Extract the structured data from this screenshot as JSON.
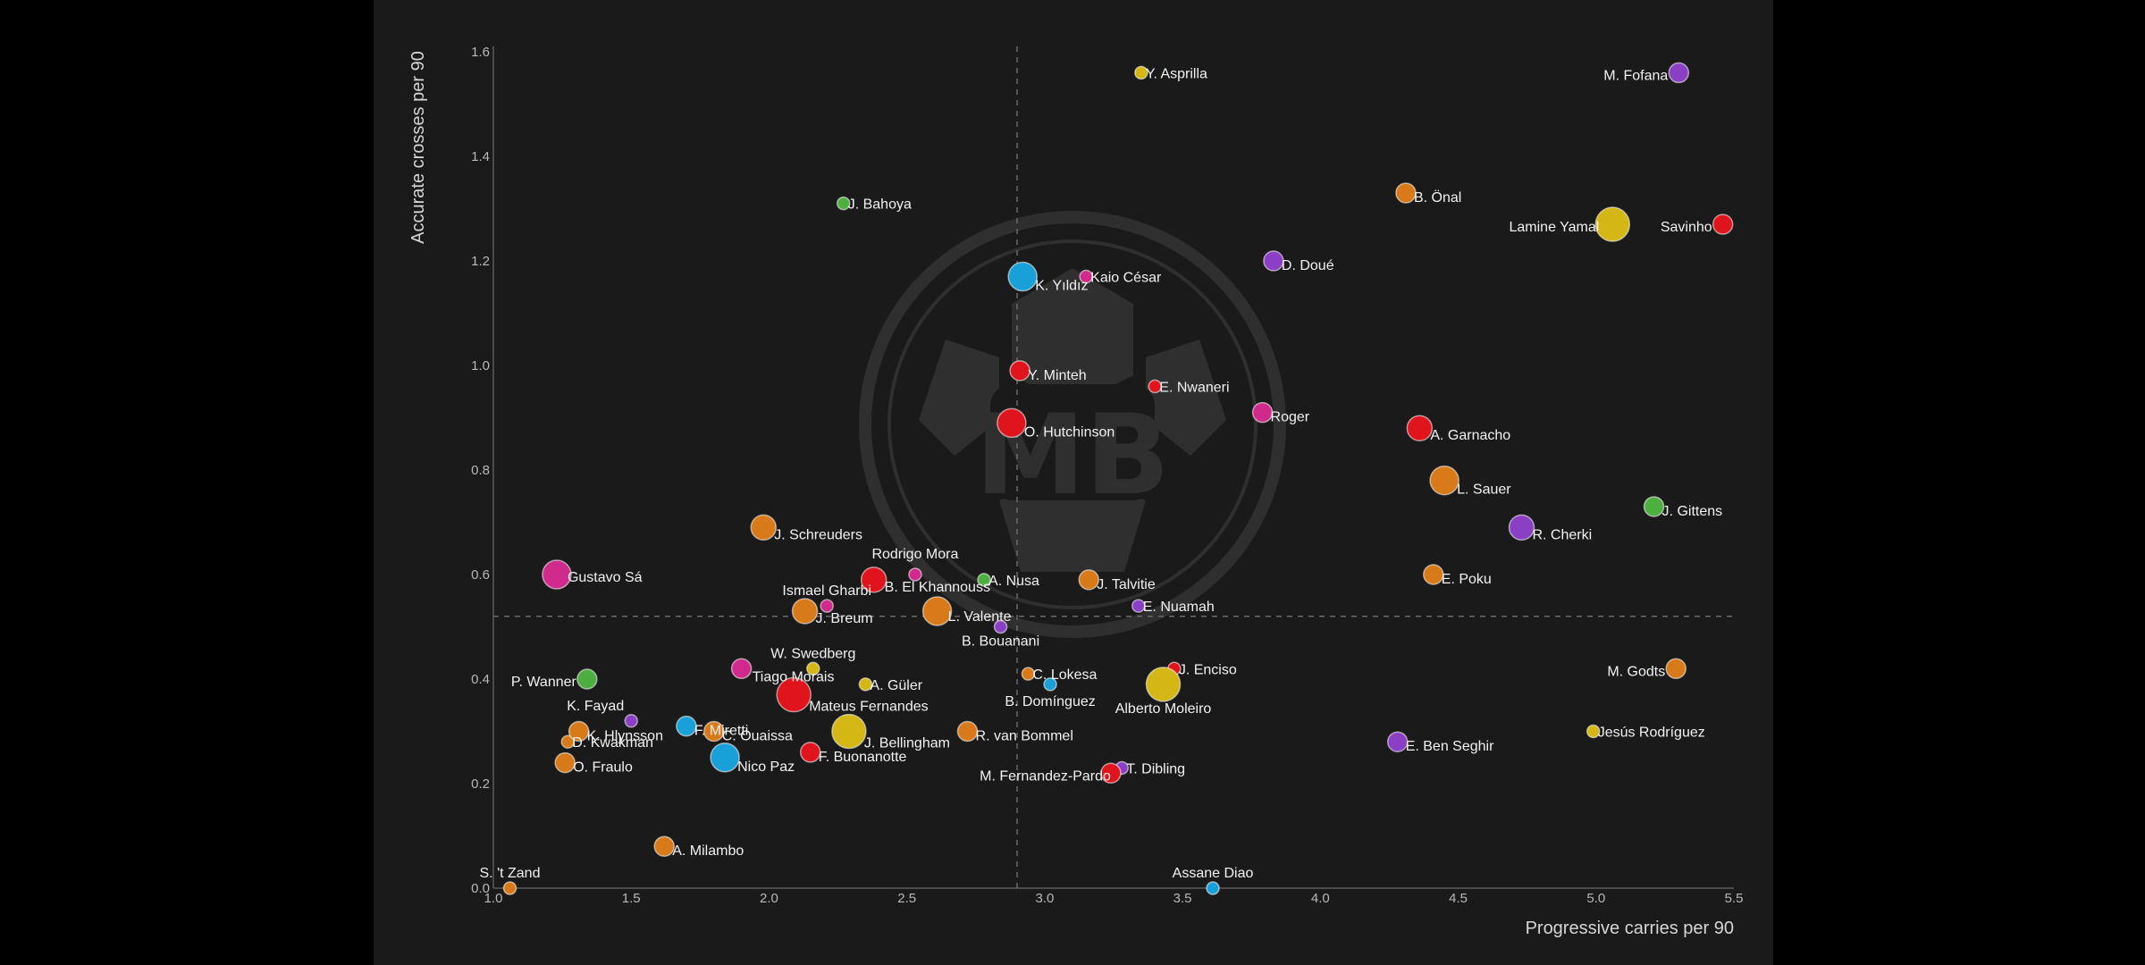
{
  "chart_data": {
    "type": "scatter",
    "title": "",
    "xlabel": "Progressive carries per 90",
    "ylabel": "Accurate crosses per 90",
    "xlim": [
      1.0,
      5.5
    ],
    "ylim": [
      0.0,
      1.6
    ],
    "xticks": [
      "1.0",
      "1.5",
      "2.0",
      "2.5",
      "3.0",
      "3.5",
      "4.0",
      "4.5",
      "5.0",
      "5.5"
    ],
    "yticks": [
      "0.0",
      "0.2",
      "0.4",
      "0.6",
      "0.8",
      "1.0",
      "1.2",
      "1.4",
      "1.6"
    ],
    "reference_lines": {
      "x": 2.9,
      "y": 0.52
    },
    "grid": false,
    "watermark": "MB",
    "colors": {
      "red": "#e0141c",
      "orange": "#d97a1a",
      "yellow": "#d4b614",
      "purple": "#8a3fc4",
      "green": "#4caf3f",
      "blue": "#1aa0d8",
      "pink": "#d02a8c"
    },
    "points": [
      {
        "name": "Y. Asprilla",
        "x": 3.35,
        "y": 1.56,
        "size": 1,
        "color": "yellow"
      },
      {
        "name": "M. Fofana",
        "x": 5.3,
        "y": 1.56,
        "size": 2,
        "color": "purple"
      },
      {
        "name": "J. Bahoya",
        "x": 2.27,
        "y": 1.31,
        "size": 1,
        "color": "green"
      },
      {
        "name": "B. Önal",
        "x": 4.31,
        "y": 1.33,
        "size": 2,
        "color": "orange"
      },
      {
        "name": "Lamine Yamal",
        "x": 5.06,
        "y": 1.27,
        "size": 5,
        "color": "yellow"
      },
      {
        "name": "Savinho",
        "x": 5.46,
        "y": 1.27,
        "size": 2,
        "color": "red"
      },
      {
        "name": "D. Doué",
        "x": 3.83,
        "y": 1.2,
        "size": 2,
        "color": "purple"
      },
      {
        "name": "K. Yıldız",
        "x": 2.92,
        "y": 1.17,
        "size": 4,
        "color": "blue"
      },
      {
        "name": "Kaio César",
        "x": 3.15,
        "y": 1.17,
        "size": 1,
        "color": "pink"
      },
      {
        "name": "Y. Minteh",
        "x": 2.91,
        "y": 0.99,
        "size": 2,
        "color": "red"
      },
      {
        "name": "E. Nwaneri",
        "x": 3.4,
        "y": 0.96,
        "size": 1,
        "color": "red"
      },
      {
        "name": "Roger",
        "x": 3.79,
        "y": 0.91,
        "size": 2,
        "color": "pink"
      },
      {
        "name": "O. Hutchinson",
        "x": 2.88,
        "y": 0.89,
        "size": 4,
        "color": "red"
      },
      {
        "name": "A. Garnacho",
        "x": 4.36,
        "y": 0.88,
        "size": 3,
        "color": "red"
      },
      {
        "name": "L. Sauer",
        "x": 4.45,
        "y": 0.78,
        "size": 4,
        "color": "orange"
      },
      {
        "name": "J. Gittens",
        "x": 5.21,
        "y": 0.73,
        "size": 2,
        "color": "green"
      },
      {
        "name": "R. Cherki",
        "x": 4.73,
        "y": 0.69,
        "size": 3,
        "color": "purple"
      },
      {
        "name": "J. Schreuders",
        "x": 1.98,
        "y": 0.69,
        "size": 3,
        "color": "orange"
      },
      {
        "name": "Gustavo Sá",
        "x": 1.23,
        "y": 0.6,
        "size": 4,
        "color": "pink"
      },
      {
        "name": "Rodrigo Mora",
        "x": 2.53,
        "y": 0.6,
        "size": 1,
        "color": "pink"
      },
      {
        "name": "B. El Khannouss",
        "x": 2.38,
        "y": 0.59,
        "size": 3,
        "color": "red"
      },
      {
        "name": "A. Nusa",
        "x": 2.78,
        "y": 0.59,
        "size": 1,
        "color": "green"
      },
      {
        "name": "J. Talvitie",
        "x": 3.16,
        "y": 0.59,
        "size": 2,
        "color": "orange"
      },
      {
        "name": "E. Poku",
        "x": 4.41,
        "y": 0.6,
        "size": 2,
        "color": "orange"
      },
      {
        "name": "Ismael Gharbi",
        "x": 2.21,
        "y": 0.54,
        "size": 1,
        "color": "pink"
      },
      {
        "name": "J. Breum",
        "x": 2.13,
        "y": 0.53,
        "size": 3,
        "color": "orange"
      },
      {
        "name": "L. Valente",
        "x": 2.61,
        "y": 0.53,
        "size": 4,
        "color": "orange"
      },
      {
        "name": "E. Nuamah",
        "x": 3.34,
        "y": 0.54,
        "size": 1,
        "color": "purple"
      },
      {
        "name": "B. Bouanani",
        "x": 2.84,
        "y": 0.5,
        "size": 1,
        "color": "purple"
      },
      {
        "name": "W. Swedberg",
        "x": 2.16,
        "y": 0.42,
        "size": 1,
        "color": "yellow"
      },
      {
        "name": "Tiago Morais",
        "x": 1.9,
        "y": 0.42,
        "size": 2,
        "color": "pink"
      },
      {
        "name": "P. Wanner",
        "x": 1.34,
        "y": 0.4,
        "size": 2,
        "color": "green"
      },
      {
        "name": "A. Güler",
        "x": 2.35,
        "y": 0.39,
        "size": 1,
        "color": "yellow"
      },
      {
        "name": "C. Lokesa",
        "x": 2.94,
        "y": 0.41,
        "size": 1,
        "color": "orange"
      },
      {
        "name": "J. Enciso",
        "x": 3.47,
        "y": 0.42,
        "size": 1,
        "color": "red"
      },
      {
        "name": "M. Godts",
        "x": 5.29,
        "y": 0.42,
        "size": 2,
        "color": "orange"
      },
      {
        "name": "Mateus Fernandes",
        "x": 2.09,
        "y": 0.37,
        "size": 5,
        "color": "red"
      },
      {
        "name": "B. Domínguez",
        "x": 3.02,
        "y": 0.39,
        "size": 1,
        "color": "blue"
      },
      {
        "name": "Alberto Moleiro",
        "x": 3.43,
        "y": 0.39,
        "size": 5,
        "color": "yellow"
      },
      {
        "name": "K. Fayad",
        "x": 1.5,
        "y": 0.32,
        "size": 1,
        "color": "purple"
      },
      {
        "name": "F. Miretti",
        "x": 1.7,
        "y": 0.31,
        "size": 2,
        "color": "blue"
      },
      {
        "name": "C. Ouaissa",
        "x": 1.8,
        "y": 0.3,
        "size": 2,
        "color": "orange"
      },
      {
        "name": "J. Bellingham",
        "x": 2.29,
        "y": 0.3,
        "size": 5,
        "color": "yellow"
      },
      {
        "name": "R. van Bommel",
        "x": 2.72,
        "y": 0.3,
        "size": 2,
        "color": "orange"
      },
      {
        "name": "Jesús Rodríguez",
        "x": 4.99,
        "y": 0.3,
        "size": 1,
        "color": "yellow"
      },
      {
        "name": "K. Hlynsson",
        "x": 1.31,
        "y": 0.3,
        "size": 2,
        "color": "orange"
      },
      {
        "name": "D. Kwakman",
        "x": 1.27,
        "y": 0.28,
        "size": 1,
        "color": "orange"
      },
      {
        "name": "E. Ben Seghir",
        "x": 4.28,
        "y": 0.28,
        "size": 2,
        "color": "purple"
      },
      {
        "name": "F. Buonanotte",
        "x": 2.15,
        "y": 0.26,
        "size": 2,
        "color": "red"
      },
      {
        "name": "Nico Paz",
        "x": 1.84,
        "y": 0.25,
        "size": 4,
        "color": "blue"
      },
      {
        "name": "O. Fraulo",
        "x": 1.26,
        "y": 0.24,
        "size": 2,
        "color": "orange"
      },
      {
        "name": "M. Fernandez-Pardo",
        "x": 3.24,
        "y": 0.22,
        "size": 2,
        "color": "red"
      },
      {
        "name": "T. Dibling",
        "x": 3.28,
        "y": 0.23,
        "size": 1,
        "color": "purple"
      },
      {
        "name": "A. Milambo",
        "x": 1.62,
        "y": 0.08,
        "size": 2,
        "color": "orange"
      },
      {
        "name": "S. 't Zand",
        "x": 1.06,
        "y": 0.0,
        "size": 1,
        "color": "orange"
      },
      {
        "name": "Assane Diao",
        "x": 3.61,
        "y": 0.0,
        "size": 1,
        "color": "blue"
      }
    ]
  }
}
